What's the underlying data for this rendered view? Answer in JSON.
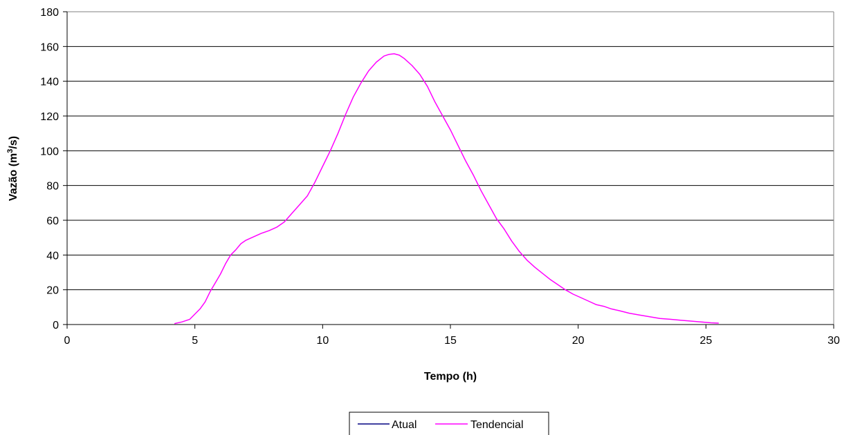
{
  "chart_data": {
    "type": "line",
    "xlabel": "Tempo (h)",
    "ylabel_main": "Vazão (m",
    "ylabel_sup": "3",
    "ylabel_end": "/s)",
    "xlim": [
      0,
      30
    ],
    "ylim": [
      0,
      180
    ],
    "x_ticks": [
      0,
      5,
      10,
      15,
      20,
      25,
      30
    ],
    "y_ticks": [
      0,
      20,
      40,
      60,
      80,
      100,
      120,
      140,
      160,
      180
    ],
    "grid": "horizontal",
    "legend_position": "bottom-center",
    "series": [
      {
        "name": "Atual",
        "color": "#000080",
        "x": [],
        "y": []
      },
      {
        "name": "Tendencial",
        "color": "#FF00FF",
        "x": [
          4.2,
          4.5,
          4.8,
          5.0,
          5.2,
          5.4,
          5.6,
          5.8,
          6.0,
          6.2,
          6.4,
          6.6,
          6.8,
          7.0,
          7.3,
          7.6,
          7.9,
          8.2,
          8.5,
          8.8,
          9.1,
          9.4,
          9.7,
          10.0,
          10.3,
          10.6,
          10.9,
          11.2,
          11.5,
          11.8,
          12.1,
          12.4,
          12.6,
          12.8,
          13.0,
          13.2,
          13.5,
          13.8,
          14.1,
          14.4,
          14.7,
          15.0,
          15.3,
          15.6,
          15.9,
          16.2,
          16.5,
          16.8,
          17.1,
          17.4,
          17.7,
          18.0,
          18.3,
          18.6,
          18.9,
          19.2,
          19.5,
          19.8,
          20.1,
          20.4,
          20.7,
          21.0,
          21.3,
          21.6,
          22.0,
          22.4,
          22.8,
          23.2,
          23.6,
          24.0,
          24.4,
          24.8,
          25.2,
          25.5
        ],
        "y": [
          0.5,
          1.5,
          3,
          6,
          9,
          13,
          19,
          24,
          29,
          35,
          40,
          43,
          46.5,
          48.5,
          50.5,
          52.5,
          54,
          56,
          59,
          64,
          69,
          74,
          82,
          91,
          100,
          110,
          121,
          131,
          139,
          146,
          151,
          154.5,
          155.5,
          155.8,
          155,
          153,
          149,
          144,
          137,
          128,
          120,
          112,
          103,
          94,
          86,
          77,
          69,
          61,
          55,
          48,
          42,
          37,
          33,
          29.5,
          26,
          23,
          20,
          17.5,
          15.5,
          13.5,
          11.5,
          10.5,
          9,
          8,
          6.5,
          5.5,
          4.5,
          3.5,
          3,
          2.5,
          2,
          1.5,
          1,
          0.8
        ]
      }
    ]
  }
}
